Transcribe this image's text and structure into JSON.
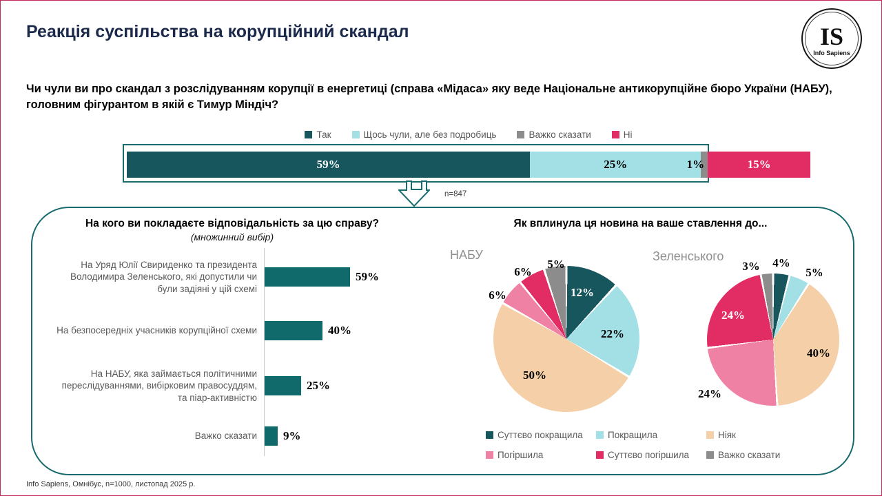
{
  "page": {
    "title": "Реакція суспільства на корупційний скандал",
    "question": "Чи чули ви про скандал з розслідуванням корупції в енергетиці (справа «Мідаса» яку веде Національне антикорупційне бюро України (НАБУ), головним фігурантом в якій є Тимур Міндіч?",
    "footer": "Info Sapiens, Омнібус, n=1000, листопад 2025 р.",
    "logo_initials": "IS",
    "logo_name": "Info Sapiens"
  },
  "colors": {
    "teal_dark": "#16565C",
    "cyan_light": "#A3E0E6",
    "peach": "#F4CFA7",
    "pink": "#EF82A4",
    "crimson": "#E12D63",
    "gray": "#8C8C8C",
    "bar_teal": "#10696B",
    "frame_teal": "#1A6B6E",
    "title_navy": "#1B2A4B",
    "page_border": "#C2285B"
  },
  "chart_data": [
    {
      "id": "awareness_stacked_bar",
      "type": "bar",
      "stacked": true,
      "orientation": "horizontal",
      "categories": [
        "Так",
        "Щось чули, але без подробиць",
        "Важко сказати",
        "Ні"
      ],
      "values": [
        59,
        25,
        1,
        15
      ],
      "value_labels": [
        "59%",
        "25%",
        "1%",
        "15%"
      ],
      "colors": [
        "#16565C",
        "#A3E0E6",
        "#8C8C8C",
        "#E12D63"
      ],
      "note": "n=847",
      "highlight_note": "frame encloses Так+Щось чули+Важко сказати (85%), arrow points to detail panel",
      "legend_position": "top"
    },
    {
      "id": "responsibility_bar",
      "type": "bar",
      "orientation": "horizontal",
      "title": "На кого ви покладаєте відповідальність за цю справу?",
      "subtitle": "(множинний вибір)",
      "categories": [
        "На Уряд Юлії Свириденко та президента Володимира Зеленського, які допустили чи були задіяні у цій схемі",
        "На безпосередніх учасників корупційної схеми",
        "На НАБУ, яка займається політичними переслідуваннями, вибірковим правосуддям, та піар-активністю",
        "Важко сказати"
      ],
      "values": [
        59,
        40,
        25,
        9
      ],
      "value_labels": [
        "59%",
        "40%",
        "25%",
        "9%"
      ],
      "bar_color": "#10696B",
      "xlim": [
        0,
        100
      ],
      "grid": false
    },
    {
      "id": "pie_nabu",
      "type": "pie",
      "title": "НАБУ",
      "section_title": "Як вплинула ця новина на ваше ставлення до...",
      "labels": [
        "Суттєво покращила",
        "Покращила",
        "Ніяк",
        "Погіршила",
        "Суттєво погіршила",
        "Важко сказати"
      ],
      "values": [
        12,
        22,
        50,
        6,
        6,
        5
      ],
      "value_labels": [
        "12%",
        "22%",
        "50%",
        "6%",
        "6%",
        "5%"
      ],
      "colors": [
        "#16565C",
        "#A3E0E6",
        "#F4CFA7",
        "#EF82A4",
        "#E12D63",
        "#8C8C8C"
      ],
      "start_angle_deg": 0,
      "direction": "clockwise"
    },
    {
      "id": "pie_zelensky",
      "type": "pie",
      "title": "Зеленського",
      "labels": [
        "Суттєво покращила",
        "Покращила",
        "Ніяк",
        "Погіршила",
        "Суттєво погіршила",
        "Важко сказати"
      ],
      "values": [
        4,
        5,
        40,
        24,
        24,
        3
      ],
      "value_labels": [
        "4%",
        "5%",
        "40%",
        "24%",
        "24%",
        "3%"
      ],
      "colors": [
        "#16565C",
        "#A3E0E6",
        "#F4CFA7",
        "#EF82A4",
        "#E12D63",
        "#8C8C8C"
      ],
      "start_angle_deg": 0,
      "direction": "clockwise"
    }
  ],
  "pies_section_title": "Як вплинула ця новина на ваше ставлення до...",
  "pie_legend": {
    "items": [
      {
        "label": "Суттєво покращила",
        "color": "#16565C"
      },
      {
        "label": "Покращила",
        "color": "#A3E0E6"
      },
      {
        "label": "Ніяк",
        "color": "#F4CFA7"
      },
      {
        "label": "Погіршила",
        "color": "#EF82A4"
      },
      {
        "label": "Суттєво погіршила",
        "color": "#E12D63"
      },
      {
        "label": "Важко сказати",
        "color": "#8C8C8C"
      }
    ]
  }
}
